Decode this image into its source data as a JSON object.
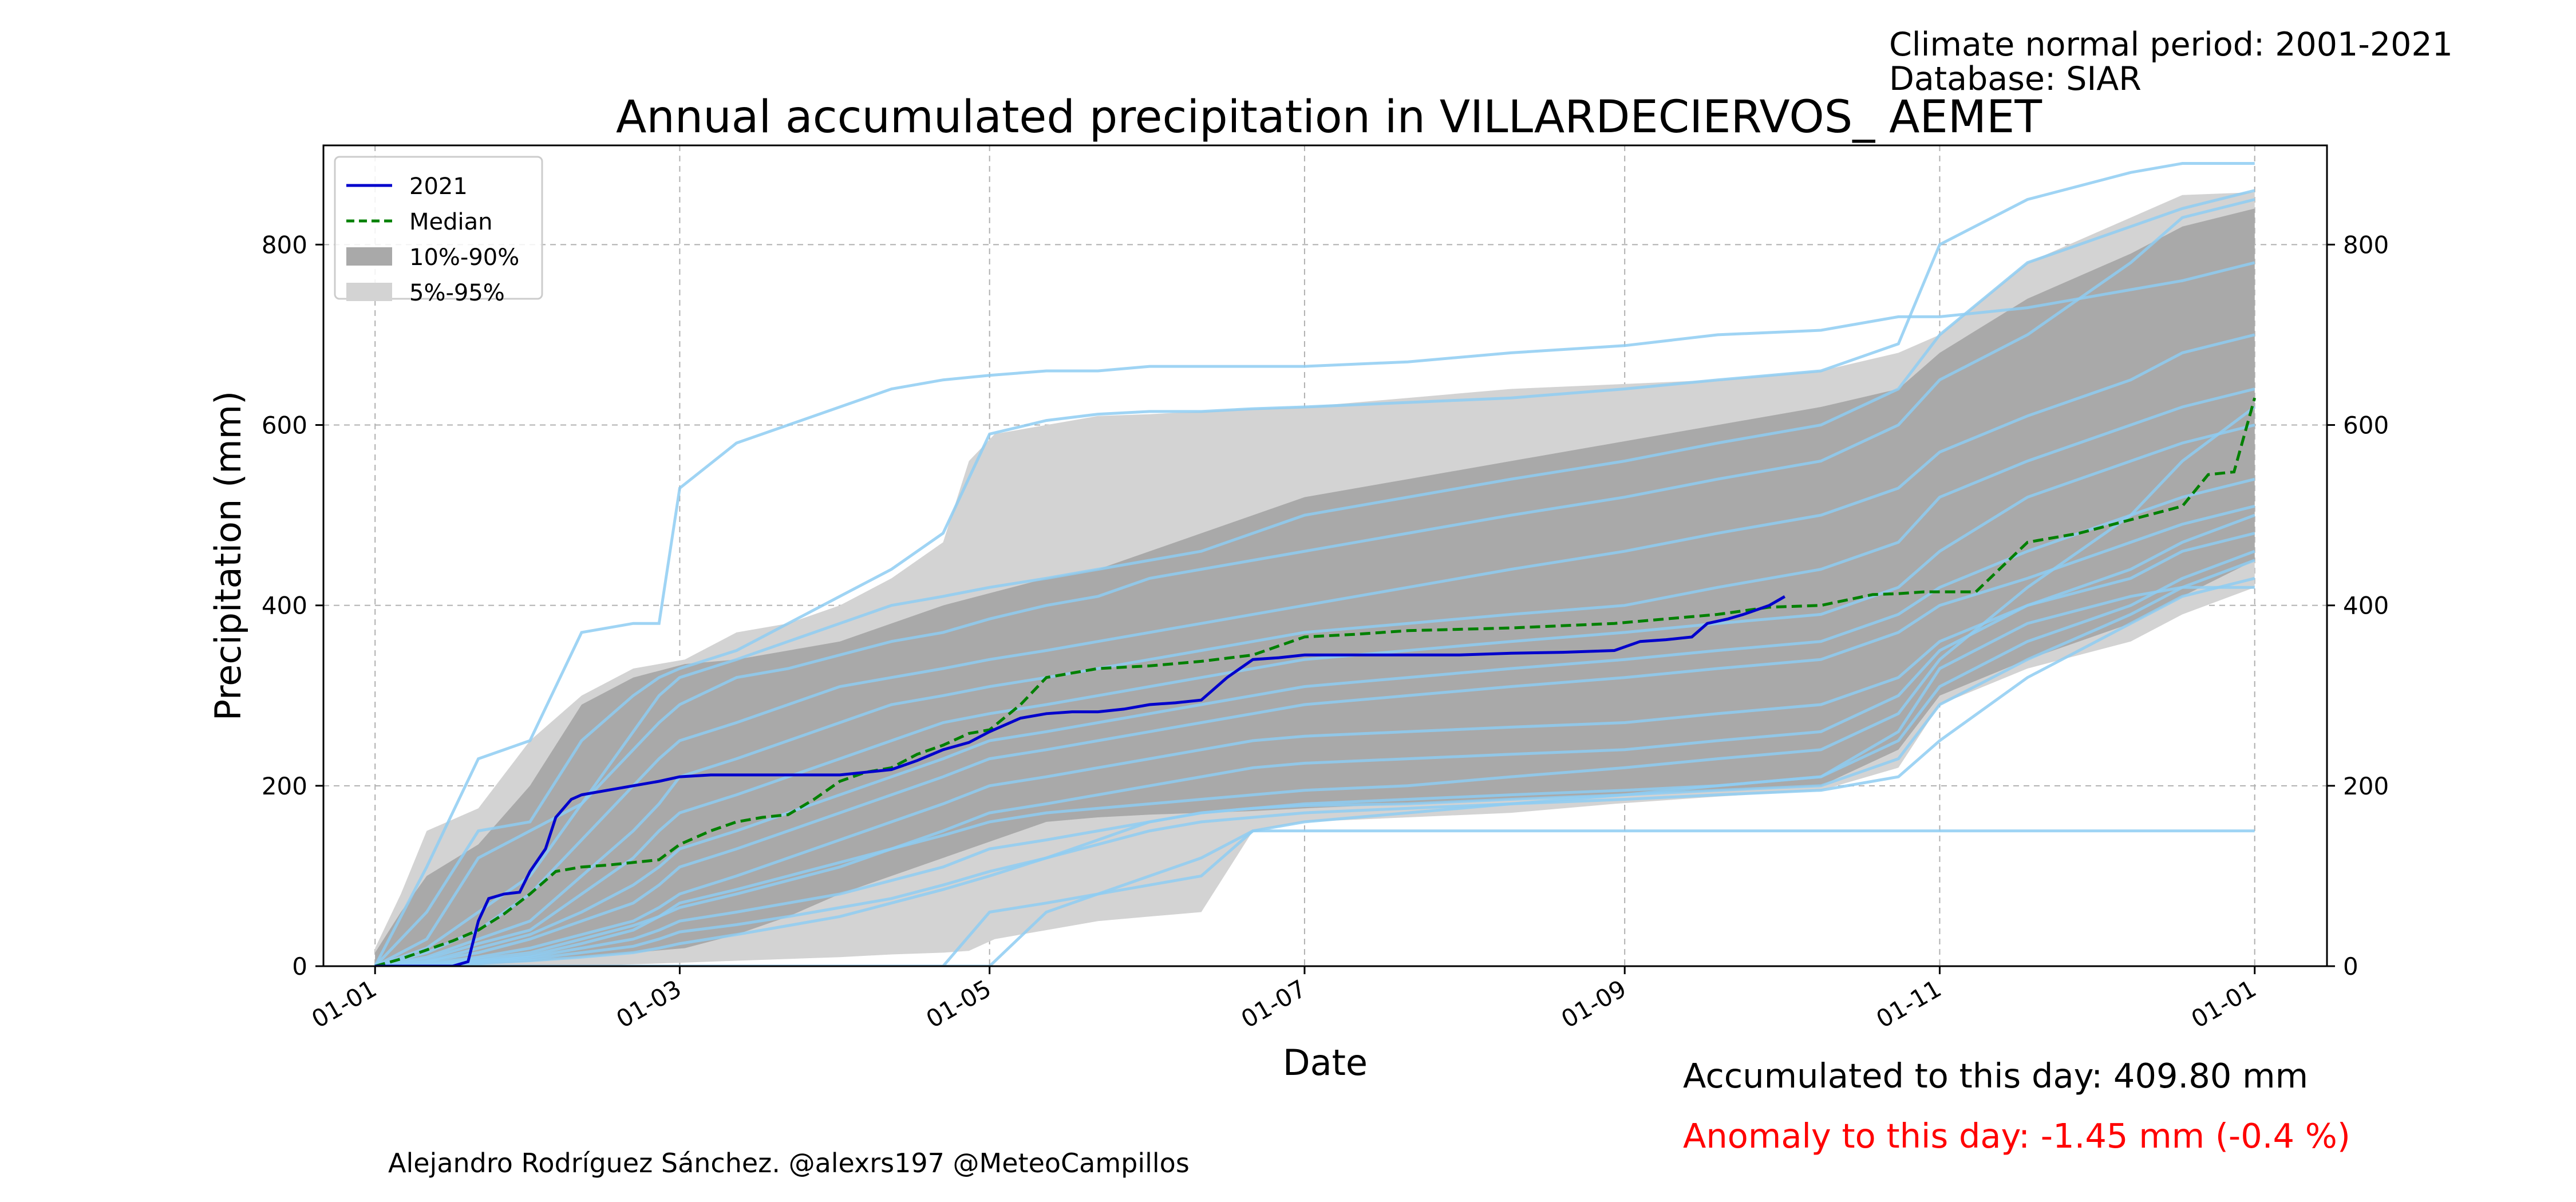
{
  "header": {
    "period_text": "Climate normal period: 2001-2021",
    "database_text": "Database: SIAR"
  },
  "footer": {
    "accumulated_text": "Accumulated to this day: 409.80 mm",
    "anomaly_text": "Anomaly to this day: -1.45 mm (-0.4 %)",
    "credit_text": "Alejandro Rodríguez Sánchez. @alexrs197 @MeteoCampillos"
  },
  "colors": {
    "current": "#0000cc",
    "median": "#008000",
    "band_10_90": "#a9a9a9",
    "band_5_95": "#d3d3d3",
    "historic": "#8ecdf2",
    "anomaly": "#ff0000"
  },
  "chart_data": {
    "type": "line",
    "title": "Annual accumulated precipitation in VILLARDECIERVOS_ AEMET",
    "xlabel": "Date",
    "ylabel": "Precipitation (mm)",
    "xlim": [
      -10,
      378
    ],
    "ylim": [
      0,
      910
    ],
    "yticks": [
      0,
      200,
      400,
      600,
      800
    ],
    "xticks": [
      {
        "day": 0,
        "label": "01-01"
      },
      {
        "day": 59,
        "label": "01-03"
      },
      {
        "day": 119,
        "label": "01-05"
      },
      {
        "day": 180,
        "label": "01-07"
      },
      {
        "day": 242,
        "label": "01-09"
      },
      {
        "day": 303,
        "label": "01-11"
      },
      {
        "day": 364,
        "label": "01-01"
      }
    ],
    "grid": true,
    "legend_position": "upper-left",
    "legend": [
      {
        "label": "2021",
        "kind": "solid-line",
        "color": "#0000cc"
      },
      {
        "label": "Median",
        "kind": "dashed-line",
        "color": "#008000"
      },
      {
        "label": "10%-90%",
        "kind": "patch",
        "color": "#a9a9a9"
      },
      {
        "label": "5%-95%",
        "kind": "patch",
        "color": "#d3d3d3"
      }
    ],
    "series": [
      {
        "name": "5%-95% band",
        "kind": "band",
        "color": "#d3d3d3",
        "x": [
          0,
          5,
          10,
          20,
          30,
          40,
          50,
          60,
          70,
          80,
          90,
          100,
          110,
          115,
          120,
          130,
          140,
          150,
          160,
          170,
          180,
          200,
          220,
          240,
          260,
          280,
          295,
          303,
          320,
          340,
          350,
          364
        ],
        "lower": [
          0,
          0,
          0,
          0,
          0,
          0,
          2,
          4,
          6,
          8,
          10,
          13,
          15,
          17,
          30,
          40,
          50,
          55,
          60,
          150,
          160,
          165,
          170,
          180,
          188,
          195,
          220,
          290,
          330,
          360,
          390,
          420
        ],
        "upper": [
          20,
          80,
          150,
          175,
          250,
          300,
          330,
          340,
          370,
          380,
          400,
          430,
          470,
          560,
          590,
          600,
          610,
          612,
          615,
          618,
          620,
          630,
          640,
          645,
          650,
          660,
          680,
          700,
          780,
          830,
          855,
          858
        ]
      },
      {
        "name": "10%-90% band",
        "kind": "band",
        "color": "#a9a9a9",
        "x": [
          0,
          5,
          10,
          20,
          30,
          40,
          50,
          60,
          70,
          80,
          90,
          100,
          110,
          120,
          130,
          140,
          150,
          160,
          170,
          180,
          200,
          220,
          240,
          260,
          280,
          295,
          303,
          320,
          340,
          350,
          364
        ],
        "lower": [
          0,
          0,
          0,
          2,
          5,
          10,
          15,
          20,
          35,
          55,
          80,
          100,
          120,
          140,
          160,
          165,
          168,
          170,
          172,
          175,
          180,
          185,
          190,
          195,
          200,
          240,
          300,
          340,
          380,
          410,
          450
        ],
        "upper": [
          15,
          60,
          100,
          135,
          200,
          290,
          320,
          335,
          340,
          350,
          360,
          380,
          400,
          415,
          430,
          440,
          460,
          480,
          500,
          520,
          540,
          560,
          580,
          600,
          620,
          640,
          680,
          740,
          790,
          820,
          840
        ]
      },
      {
        "name": "Historical years",
        "kind": "spaghetti",
        "color": "#8ecdf2",
        "x": [
          0,
          10,
          20,
          30,
          40,
          50,
          55,
          59,
          70,
          80,
          90,
          100,
          110,
          119,
          130,
          140,
          150,
          160,
          170,
          180,
          200,
          220,
          242,
          260,
          280,
          295,
          303,
          320,
          340,
          350,
          364
        ],
        "lines": [
          [
            0,
            110,
            230,
            250,
            370,
            380,
            380,
            530,
            580,
            600,
            620,
            640,
            650,
            655,
            660,
            660,
            665,
            665,
            665,
            665,
            670,
            680,
            688,
            700,
            705,
            720,
            720,
            730,
            750,
            760,
            780
          ],
          [
            0,
            60,
            150,
            160,
            250,
            300,
            320,
            330,
            350,
            380,
            410,
            440,
            480,
            590,
            605,
            612,
            615,
            615,
            618,
            620,
            625,
            630,
            640,
            650,
            660,
            690,
            800,
            850,
            880,
            890,
            890
          ],
          [
            0,
            30,
            120,
            150,
            180,
            260,
            300,
            320,
            340,
            360,
            380,
            400,
            410,
            420,
            430,
            440,
            450,
            460,
            480,
            500,
            520,
            540,
            560,
            580,
            600,
            640,
            700,
            780,
            820,
            840,
            860
          ],
          [
            0,
            20,
            60,
            100,
            180,
            240,
            270,
            290,
            320,
            330,
            345,
            360,
            370,
            385,
            400,
            410,
            430,
            440,
            450,
            460,
            480,
            500,
            520,
            540,
            560,
            600,
            650,
            700,
            780,
            830,
            850
          ],
          [
            0,
            15,
            40,
            80,
            140,
            200,
            230,
            250,
            270,
            290,
            310,
            320,
            330,
            340,
            350,
            360,
            370,
            380,
            390,
            400,
            420,
            440,
            460,
            480,
            500,
            530,
            570,
            610,
            650,
            680,
            700
          ],
          [
            0,
            10,
            30,
            50,
            100,
            150,
            180,
            210,
            230,
            250,
            270,
            290,
            300,
            310,
            320,
            330,
            340,
            350,
            360,
            370,
            380,
            390,
            400,
            420,
            440,
            470,
            520,
            560,
            600,
            620,
            640
          ],
          [
            0,
            8,
            25,
            40,
            80,
            120,
            150,
            170,
            190,
            210,
            230,
            250,
            270,
            280,
            290,
            300,
            310,
            320,
            330,
            340,
            350,
            360,
            370,
            380,
            390,
            420,
            460,
            520,
            560,
            580,
            600
          ],
          [
            0,
            5,
            20,
            35,
            60,
            90,
            110,
            130,
            150,
            170,
            190,
            210,
            230,
            250,
            260,
            270,
            280,
            290,
            300,
            310,
            320,
            330,
            340,
            350,
            360,
            390,
            420,
            460,
            500,
            520,
            540
          ],
          [
            0,
            5,
            15,
            30,
            50,
            70,
            90,
            110,
            130,
            150,
            170,
            190,
            210,
            230,
            240,
            250,
            260,
            270,
            280,
            290,
            300,
            310,
            320,
            330,
            340,
            370,
            400,
            430,
            470,
            490,
            510
          ],
          [
            0,
            3,
            10,
            20,
            35,
            50,
            65,
            80,
            100,
            120,
            140,
            160,
            180,
            200,
            210,
            220,
            230,
            240,
            250,
            255,
            260,
            265,
            270,
            280,
            290,
            320,
            360,
            400,
            440,
            470,
            500
          ],
          [
            0,
            2,
            8,
            15,
            30,
            45,
            55,
            65,
            80,
            95,
            110,
            130,
            150,
            170,
            180,
            190,
            200,
            210,
            220,
            225,
            230,
            235,
            240,
            250,
            260,
            300,
            350,
            400,
            430,
            460,
            480
          ],
          [
            0,
            2,
            5,
            10,
            20,
            30,
            40,
            50,
            60,
            70,
            80,
            95,
            110,
            130,
            140,
            150,
            160,
            170,
            175,
            180,
            185,
            190,
            195,
            200,
            210,
            250,
            310,
            360,
            400,
            430,
            460
          ],
          [
            0,
            1,
            3,
            6,
            10,
            15,
            20,
            25,
            35,
            45,
            55,
            70,
            85,
            100,
            120,
            140,
            160,
            170,
            175,
            178,
            180,
            185,
            190,
            195,
            200,
            230,
            290,
            340,
            390,
            420,
            450
          ],
          [
            0,
            2,
            6,
            12,
            25,
            40,
            55,
            70,
            85,
            100,
            115,
            130,
            145,
            160,
            170,
            175,
            180,
            185,
            190,
            195,
            200,
            210,
            220,
            230,
            240,
            280,
            340,
            420,
            500,
            560,
            620
          ],
          [
            0,
            1,
            4,
            8,
            15,
            22,
            30,
            38,
            46,
            55,
            65,
            75,
            90,
            105,
            120,
            135,
            150,
            160,
            165,
            170,
            175,
            180,
            185,
            190,
            195,
            210,
            250,
            320,
            380,
            410,
            430
          ],
          [
            0,
            0,
            0,
            0,
            0,
            0,
            0,
            0,
            0,
            0,
            0,
            0,
            0,
            60,
            70,
            80,
            90,
            100,
            150,
            150,
            150,
            150,
            150,
            150,
            150,
            150,
            150,
            150,
            150,
            150,
            150
          ],
          [
            0,
            0,
            0,
            0,
            0,
            0,
            0,
            0,
            0,
            0,
            0,
            0,
            0,
            0,
            60,
            80,
            100,
            120,
            150,
            160,
            170,
            180,
            190,
            200,
            210,
            260,
            330,
            380,
            410,
            420,
            420
          ]
        ]
      },
      {
        "name": "Median",
        "kind": "dashed-line",
        "color": "#008000",
        "x": [
          0,
          5,
          10,
          15,
          20,
          25,
          30,
          35,
          40,
          45,
          50,
          55,
          59,
          65,
          70,
          75,
          80,
          85,
          90,
          95,
          100,
          105,
          110,
          115,
          119,
          125,
          130,
          140,
          150,
          160,
          170,
          180,
          190,
          200,
          220,
          240,
          250,
          260,
          270,
          280,
          290,
          295,
          300,
          305,
          310,
          320,
          330,
          340,
          350,
          355,
          360,
          364
        ],
        "values": [
          0,
          8,
          18,
          28,
          40,
          58,
          80,
          105,
          110,
          112,
          115,
          118,
          135,
          150,
          160,
          165,
          168,
          185,
          205,
          215,
          220,
          235,
          245,
          258,
          262,
          290,
          320,
          330,
          333,
          338,
          345,
          365,
          368,
          372,
          375,
          380,
          385,
          390,
          398,
          400,
          412,
          413,
          415,
          415,
          415,
          470,
          480,
          495,
          510,
          545,
          548,
          630
        ]
      },
      {
        "name": "2021",
        "kind": "solid-line",
        "color": "#0000cc",
        "x": [
          0,
          5,
          10,
          15,
          18,
          20,
          22,
          25,
          28,
          30,
          33,
          35,
          38,
          40,
          45,
          50,
          55,
          59,
          65,
          70,
          80,
          90,
          95,
          100,
          105,
          110,
          115,
          119,
          125,
          130,
          135,
          140,
          145,
          150,
          155,
          160,
          165,
          170,
          175,
          180,
          190,
          200,
          210,
          220,
          230,
          240,
          245,
          250,
          255,
          258,
          262,
          265,
          270,
          273
        ],
        "values": [
          0,
          0,
          0,
          0,
          5,
          50,
          75,
          80,
          82,
          105,
          130,
          165,
          185,
          190,
          195,
          200,
          205,
          210,
          212,
          212,
          212,
          212,
          215,
          218,
          228,
          240,
          248,
          260,
          275,
          280,
          282,
          282,
          285,
          290,
          292,
          295,
          320,
          340,
          342,
          345,
          345,
          345,
          345,
          347,
          348,
          350,
          360,
          362,
          365,
          380,
          385,
          390,
          400,
          409.8
        ]
      }
    ]
  }
}
